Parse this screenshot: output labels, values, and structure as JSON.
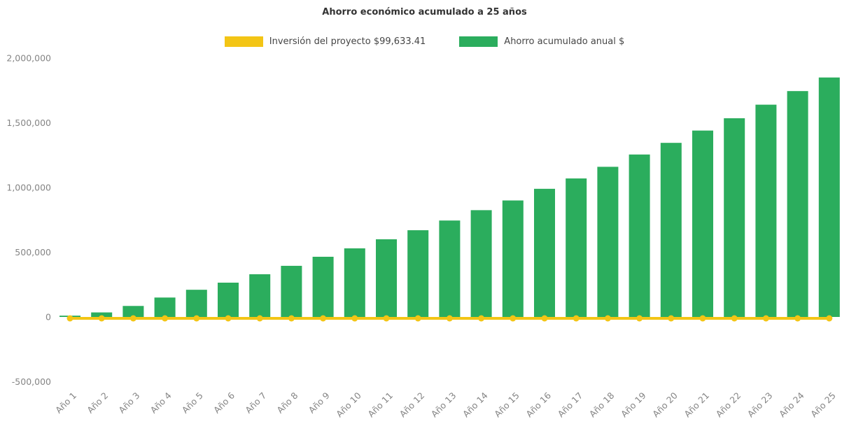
{
  "chart": {
    "title": "Ahorro económico acumulado a 25 años",
    "legend": [
      {
        "label": "Inversión del proyecto $99,633.41",
        "color": "#F3C515"
      },
      {
        "label": "Ahorro acumulado anual $",
        "color": "#2BAD5D"
      }
    ]
  },
  "chart_data": {
    "type": "bar+line",
    "title": "Ahorro económico acumulado a 25 años",
    "categories": [
      "Año 1",
      "Año 2",
      "Año 3",
      "Año 4",
      "Año 5",
      "Año 6",
      "Año 7",
      "Año 8",
      "Año 9",
      "Año 10",
      "Año 11",
      "Año 12",
      "Año 13",
      "Año 14",
      "Año 15",
      "Año 16",
      "Año 17",
      "Año 18",
      "Año 19",
      "Año 20",
      "Año 21",
      "Año 22",
      "Año 23",
      "Año 24",
      "Año 25"
    ],
    "series": [
      {
        "name": "Inversión del proyecto $99,633.41",
        "type": "line",
        "color": "#F3C515",
        "marker": "circle",
        "constant_value": 0,
        "investment_amount_label": "$99,633.41"
      },
      {
        "name": "Ahorro acumulado anual $",
        "type": "bar",
        "color": "#2BAD5D",
        "values": [
          10000,
          35000,
          85000,
          150000,
          210000,
          265000,
          330000,
          395000,
          465000,
          530000,
          600000,
          670000,
          745000,
          825000,
          900000,
          990000,
          1070000,
          1160000,
          1255000,
          1345000,
          1440000,
          1535000,
          1640000,
          1745000,
          1850000
        ]
      }
    ],
    "ylim": [
      -500000,
      2000000
    ],
    "yticks": [
      -500000,
      0,
      500000,
      1000000,
      1500000,
      2000000
    ],
    "grid": false,
    "legend_position": "top",
    "xlabel": "",
    "ylabel": ""
  }
}
